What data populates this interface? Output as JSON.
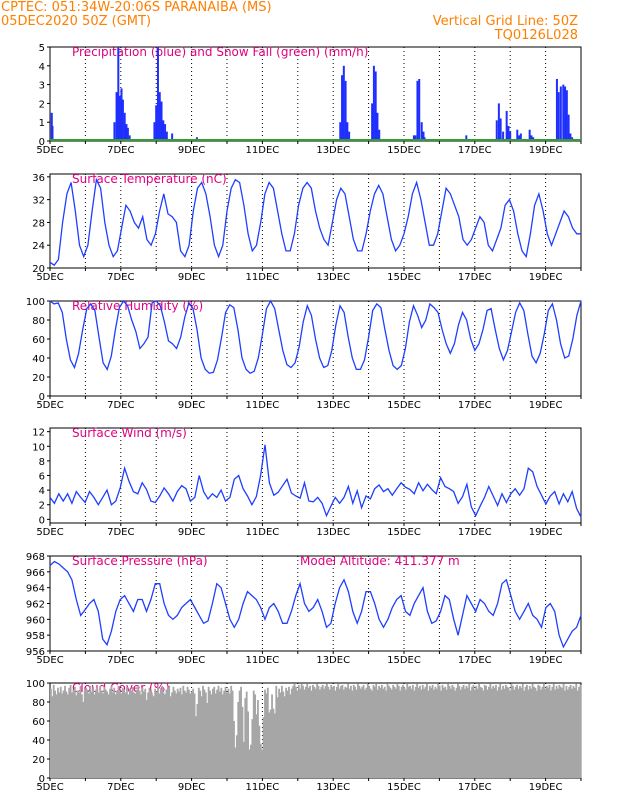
{
  "header": {
    "line1": "CPTEC:   051:34W-20:06S   PARANAIBA (MS)",
    "line2": "05DEC2020 50Z (GMT)",
    "right1": "Vertical Grid Line: 50Z",
    "right2": "TQ0126L028"
  },
  "colors": {
    "header": "#ff7f00",
    "title": "#e0007f",
    "line": "#1f3fff",
    "bar": "#1f2fff",
    "snow": "#2fa02f",
    "cloud": "#a6a6a6"
  },
  "chart_data": [
    {
      "type": "bar",
      "title": "Precipitation (blue) and Snow Fall (green) (mm/h)",
      "x_tick_labels": [
        "5DEC",
        "7DEC",
        "9DEC",
        "11DEC",
        "13DEC",
        "15DEC",
        "17DEC",
        "19DEC"
      ],
      "ylim": [
        0,
        5
      ],
      "yticks": [
        0,
        1,
        2,
        3,
        4,
        5
      ],
      "series": [
        {
          "values": [
            [
              0.05,
              1.5
            ],
            [
              0.07,
              0.8
            ],
            [
              1.82,
              1.0
            ],
            [
              1.88,
              2.6
            ],
            [
              1.93,
              5.0
            ],
            [
              1.97,
              2.4
            ],
            [
              2.02,
              2.8
            ],
            [
              2.06,
              2.2
            ],
            [
              2.11,
              1.5
            ],
            [
              2.16,
              0.9
            ],
            [
              2.2,
              0.7
            ],
            [
              2.25,
              0.3
            ],
            [
              2.95,
              1.0
            ],
            [
              3.0,
              1.9
            ],
            [
              3.05,
              5.0
            ],
            [
              3.1,
              2.6
            ],
            [
              3.15,
              2.1
            ],
            [
              3.2,
              1.1
            ],
            [
              3.25,
              0.9
            ],
            [
              3.3,
              0.5
            ],
            [
              3.45,
              0.4
            ],
            [
              4.15,
              0.2
            ],
            [
              8.2,
              1.0
            ],
            [
              8.25,
              3.5
            ],
            [
              8.3,
              4.0
            ],
            [
              8.35,
              3.2
            ],
            [
              8.4,
              1.0
            ],
            [
              8.45,
              0.5
            ],
            [
              9.1,
              2.0
            ],
            [
              9.15,
              4.0
            ],
            [
              9.2,
              3.7
            ],
            [
              9.25,
              1.5
            ],
            [
              9.3,
              0.6
            ],
            [
              9.75,
              0.1
            ],
            [
              10.28,
              0.3
            ],
            [
              10.32,
              0.3
            ],
            [
              10.38,
              3.2
            ],
            [
              10.43,
              3.3
            ],
            [
              10.5,
              1.0
            ],
            [
              10.55,
              0.5
            ],
            [
              10.58,
              0.2
            ],
            [
              11.7,
              0.1
            ],
            [
              11.76,
              0.3
            ],
            [
              11.82,
              0.1
            ],
            [
              12.62,
              1.1
            ],
            [
              12.68,
              2.0
            ],
            [
              12.73,
              1.2
            ],
            [
              12.8,
              0.5
            ],
            [
              12.9,
              1.6
            ],
            [
              12.95,
              0.8
            ],
            [
              13.0,
              0.5
            ],
            [
              13.2,
              0.6
            ],
            [
              13.25,
              0.3
            ],
            [
              13.3,
              0.4
            ],
            [
              13.55,
              0.6
            ],
            [
              13.6,
              0.3
            ],
            [
              13.65,
              0.2
            ],
            [
              14.32,
              3.3
            ],
            [
              14.37,
              2.6
            ],
            [
              14.43,
              2.9
            ],
            [
              14.5,
              3.0
            ],
            [
              14.55,
              2.9
            ],
            [
              14.6,
              2.7
            ],
            [
              14.65,
              1.4
            ],
            [
              14.7,
              0.4
            ],
            [
              14.75,
              0.2
            ]
          ]
        },
        {
          "values": [
            0
          ]
        }
      ]
    },
    {
      "type": "line",
      "title": "Surface Temperature (nC)",
      "x_tick_labels": [
        "5DEC",
        "7DEC",
        "9DEC",
        "11DEC",
        "13DEC",
        "15DEC",
        "17DEC",
        "19DEC"
      ],
      "ylim": [
        20,
        36.5
      ],
      "yticks": [
        20,
        24,
        28,
        32,
        36
      ],
      "values": [
        21,
        20.5,
        21.5,
        28,
        33,
        35,
        30,
        24,
        22,
        24,
        30,
        35.5,
        34,
        28,
        24,
        22,
        23,
        27,
        31,
        30,
        28,
        27,
        29,
        25,
        24,
        26,
        30,
        33,
        29.5,
        29,
        28,
        23,
        22,
        24,
        30,
        34,
        35,
        33,
        29,
        24,
        22,
        24,
        30,
        34,
        35.5,
        35,
        31,
        26,
        23,
        24,
        28,
        33,
        35,
        34,
        30,
        26,
        23,
        23,
        26,
        31,
        34,
        35,
        34,
        30,
        27,
        25,
        24,
        28,
        32,
        34,
        33,
        29,
        25,
        23,
        23,
        26,
        30,
        33,
        34.5,
        33,
        29,
        25,
        23,
        24,
        26,
        29,
        33,
        35,
        32,
        28,
        24,
        24,
        26,
        30,
        34,
        33,
        31,
        29,
        25,
        24,
        25,
        27,
        29,
        28,
        24,
        23,
        25,
        27,
        31,
        32,
        30,
        26,
        23,
        22,
        26,
        31,
        33,
        30,
        26,
        24,
        26,
        28,
        30,
        29,
        27,
        26,
        26
      ]
    },
    {
      "type": "line",
      "title": "Relative Humidity (%)",
      "x_tick_labels": [
        "5DEC",
        "7DEC",
        "9DEC",
        "11DEC",
        "13DEC",
        "15DEC",
        "17DEC",
        "19DEC"
      ],
      "ylim": [
        0,
        100
      ],
      "yticks": [
        0,
        20,
        40,
        60,
        80,
        100
      ],
      "values": [
        100,
        97,
        98,
        88,
        60,
        38,
        30,
        45,
        70,
        92,
        97,
        90,
        62,
        35,
        28,
        42,
        70,
        93,
        100,
        95,
        80,
        68,
        50,
        55,
        62,
        98,
        100,
        95,
        78,
        58,
        55,
        50,
        62,
        83,
        98,
        92,
        70,
        40,
        28,
        24,
        25,
        38,
        62,
        88,
        96,
        93,
        70,
        40,
        28,
        24,
        26,
        40,
        65,
        92,
        100,
        92,
        70,
        48,
        33,
        30,
        35,
        52,
        78,
        95,
        85,
        60,
        40,
        30,
        32,
        48,
        75,
        95,
        88,
        62,
        40,
        28,
        28,
        38,
        62,
        90,
        97,
        93,
        70,
        48,
        32,
        28,
        32,
        50,
        78,
        95,
        85,
        72,
        80,
        97,
        93,
        88,
        70,
        55,
        45,
        55,
        75,
        88,
        80,
        60,
        48,
        55,
        70,
        90,
        92,
        70,
        50,
        38,
        48,
        68,
        88,
        98,
        90,
        65,
        42,
        35,
        45,
        65,
        90,
        97,
        80,
        55,
        40,
        42,
        60,
        85,
        100
      ]
    },
    {
      "type": "line",
      "title": "Surface Wind (m/s)",
      "x_tick_labels": [
        "5DEC",
        "7DEC",
        "9DEC",
        "11DEC",
        "13DEC",
        "15DEC",
        "17DEC",
        "19DEC"
      ],
      "ylim": [
        -0.5,
        12.5
      ],
      "yticks": [
        0,
        2,
        4,
        6,
        8,
        10,
        12
      ],
      "values": [
        3,
        2.2,
        3.5,
        2.5,
        3.5,
        2.2,
        3.8,
        3,
        2.3,
        3.8,
        3,
        2,
        3,
        4,
        2,
        2.5,
        4.3,
        7,
        5.2,
        3.8,
        3.5,
        5,
        4.1,
        2.5,
        2.3,
        3.2,
        4.3,
        3.5,
        2.5,
        3.8,
        4.6,
        4.2,
        2.5,
        3,
        6,
        3.8,
        2.8,
        3.5,
        3,
        4,
        2.5,
        3,
        5.5,
        6,
        4.2,
        3.2,
        2,
        3.1,
        6,
        10.2,
        5,
        3.3,
        3.7,
        4.6,
        5.5,
        3.6,
        3.2,
        2.9,
        5,
        2.5,
        2.4,
        3,
        2.2,
        0.5,
        1.8,
        3,
        2.2,
        3,
        4.5,
        2.2,
        3.9,
        1.6,
        3.2,
        2.8,
        4.2,
        4.7,
        3.8,
        4.2,
        3.3,
        4.2,
        5,
        4.4,
        4.1,
        3.5,
        5,
        3.9,
        4.8,
        4.1,
        3.5,
        5.7,
        4.5,
        4.2,
        3.8,
        2.2,
        3.1,
        4.8,
        1.7,
        0.5,
        1.8,
        3,
        4.5,
        3.2,
        1.9,
        3.5,
        2.3,
        3.5,
        4.2,
        3.3,
        4.2,
        7,
        6.5,
        4.5,
        3.3,
        2.1,
        3.2,
        3.8,
        2.1,
        3.5,
        2.4,
        3.8,
        1.5,
        0.3
      ]
    },
    {
      "type": "line",
      "title": "Surface Pressure (hPa)",
      "annotation": "Model Altitude: 411.377 m",
      "x_tick_labels": [
        "5DEC",
        "7DEC",
        "9DEC",
        "11DEC",
        "13DEC",
        "15DEC",
        "17DEC",
        "19DEC"
      ],
      "ylim": [
        956,
        968
      ],
      "yticks": [
        956,
        958,
        960,
        962,
        964,
        966,
        968
      ],
      "values": [
        966.8,
        967.3,
        967,
        966.5,
        966,
        965,
        962.5,
        960.5,
        961.2,
        962,
        962.5,
        961,
        957.5,
        956.8,
        958.5,
        961,
        962.5,
        963,
        962,
        961,
        962.5,
        962.5,
        961,
        962.5,
        964.5,
        964.5,
        962,
        960.5,
        960,
        960.5,
        961.5,
        962,
        962.5,
        961.5,
        960.5,
        959.5,
        959.8,
        962,
        964.5,
        964,
        962,
        960,
        959,
        960,
        962,
        963.5,
        963,
        962.5,
        961.5,
        960,
        961.5,
        962,
        961,
        959.5,
        959.5,
        961,
        963,
        964.5,
        962,
        961,
        961.5,
        962.5,
        961,
        959,
        959.5,
        962,
        964,
        965,
        963.5,
        961,
        959.5,
        961,
        963.5,
        963.5,
        962,
        960,
        959,
        960,
        961.5,
        962.5,
        963,
        961,
        960.5,
        962,
        963,
        964,
        961,
        959.5,
        959.8,
        961,
        963,
        962.5,
        960,
        958,
        960.5,
        963,
        962,
        961,
        962.5,
        962,
        961,
        960.5,
        962,
        964.5,
        965,
        963,
        961,
        960,
        961,
        962,
        960.5,
        960,
        959,
        961.5,
        962,
        961,
        958,
        956.5,
        957.5,
        958.5,
        959,
        960.5
      ]
    },
    {
      "type": "bar",
      "title": "Cloud Cover (%)",
      "x_tick_labels": [
        "5DEC",
        "7DEC",
        "9DEC",
        "11DEC",
        "13DEC",
        "15DEC",
        "17DEC",
        "19DEC"
      ],
      "ylim": [
        0,
        100
      ],
      "yticks": [
        0,
        20,
        40,
        60,
        80,
        100
      ],
      "values": [
        94,
        86,
        98,
        92,
        88,
        95,
        90,
        96,
        89,
        92,
        97,
        91,
        88,
        95,
        98,
        90,
        93,
        96,
        87,
        92,
        90,
        97,
        88,
        80,
        92,
        95,
        93,
        89,
        97,
        91,
        96,
        88,
        93,
        94,
        90,
        97,
        92,
        89,
        96,
        93,
        91,
        88,
        94,
        97,
        90,
        95,
        88,
        92,
        97,
        91,
        89,
        95,
        93,
        90,
        96,
        88,
        94,
        92,
        96,
        90,
        89,
        93,
        97,
        92,
        88,
        95,
        91,
        94,
        82,
        90,
        95,
        92,
        88,
        86,
        94,
        91,
        96,
        89,
        93,
        97,
        90,
        88,
        93,
        95,
        97,
        86,
        90,
        96,
        92,
        89,
        94,
        91,
        95,
        88,
        97,
        92,
        90,
        96,
        93,
        89,
        91,
        94,
        89,
        65,
        78,
        95,
        92,
        86,
        97,
        93,
        90,
        79,
        96,
        92,
        88,
        94,
        96,
        89,
        93,
        97,
        91,
        95,
        88,
        92,
        96,
        90,
        94,
        89,
        97,
        92,
        60,
        32,
        45,
        80,
        92,
        96,
        75,
        38,
        84,
        91,
        70,
        30,
        35,
        62,
        92,
        88,
        67,
        82,
        55,
        36,
        30,
        64,
        93,
        89,
        95,
        69,
        72,
        88,
        73,
        68,
        97,
        85,
        94,
        90,
        97,
        91,
        86,
        95,
        92,
        96,
        88,
        94,
        97,
        99,
        96,
        92,
        98,
        94,
        99,
        97,
        93,
        96,
        99,
        95,
        97,
        92,
        98,
        96,
        94,
        99,
        97,
        93,
        96,
        98,
        94,
        97,
        99,
        96,
        93,
        98,
        95,
        97,
        92,
        96,
        99,
        94,
        97,
        98,
        93,
        96,
        95,
        99,
        94,
        97,
        92,
        98,
        96,
        93,
        99,
        97,
        94,
        96,
        98,
        93,
        95,
        99,
        97,
        94,
        92,
        98,
        96,
        99,
        93,
        97,
        95,
        98,
        94,
        96,
        92,
        99,
        97,
        95,
        93,
        98,
        96,
        94,
        99,
        97,
        92,
        96,
        98,
        95,
        93,
        99,
        96,
        97,
        94,
        98,
        92,
        96,
        99,
        95,
        97,
        93,
        98,
        94,
        96,
        99,
        92,
        97,
        95,
        98,
        93,
        96,
        94,
        99,
        97,
        92,
        98,
        95,
        96,
        93,
        99,
        97,
        94,
        98,
        96,
        92,
        95,
        99,
        97,
        93,
        96,
        98,
        94,
        97,
        95,
        99,
        92,
        96,
        98,
        93,
        97,
        94,
        99,
        96,
        95,
        92,
        98,
        97,
        93,
        96,
        99,
        94,
        97,
        95,
        98,
        92,
        96,
        99,
        93,
        97,
        94,
        98,
        96,
        95,
        92,
        99,
        97,
        93,
        96,
        98,
        94,
        97,
        95,
        99,
        92,
        96,
        98,
        93,
        97,
        94,
        99,
        96,
        95,
        92,
        98,
        97,
        93,
        96,
        99,
        94,
        97,
        95,
        98,
        92,
        96,
        99,
        93,
        97,
        94,
        98,
        96,
        95,
        99,
        92,
        97,
        93,
        96,
        98,
        94,
        97,
        95,
        99,
        92,
        96,
        98
      ]
    }
  ]
}
